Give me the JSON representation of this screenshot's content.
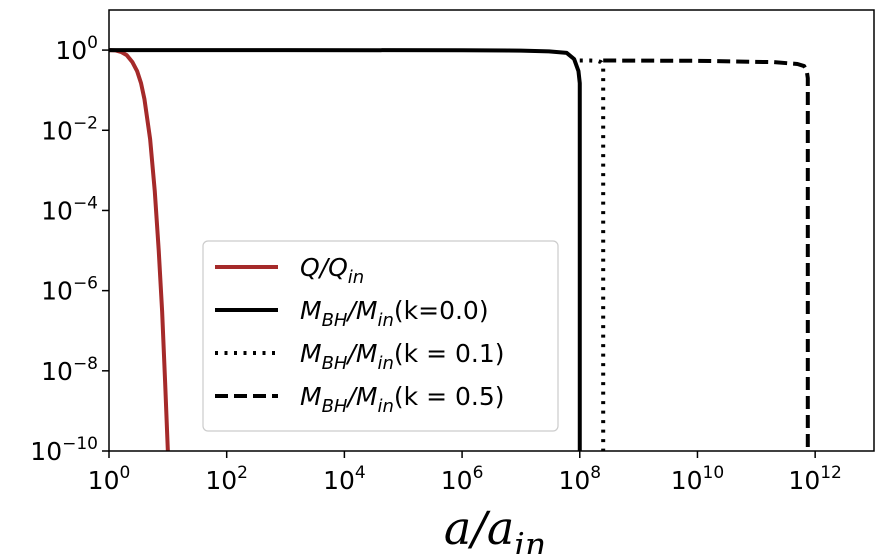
{
  "chart_data": {
    "type": "line",
    "xscale": "log",
    "yscale": "log",
    "xlim": [
      1,
      10000000000000.0
    ],
    "ylim": [
      1e-10,
      10
    ],
    "xlabel": "a/a_in",
    "ylabel": "",
    "grid": false,
    "legend_position": "lower-center",
    "xticks": [
      {
        "value": 1,
        "base": "10",
        "exp": "0"
      },
      {
        "value": 100,
        "base": "10",
        "exp": "2"
      },
      {
        "value": 10000,
        "base": "10",
        "exp": "4"
      },
      {
        "value": 1000000,
        "base": "10",
        "exp": "6"
      },
      {
        "value": 100000000,
        "base": "10",
        "exp": "8"
      },
      {
        "value": 10000000000,
        "base": "10",
        "exp": "10"
      },
      {
        "value": 1000000000000,
        "base": "10",
        "exp": "12"
      }
    ],
    "yticks": [
      {
        "value": 1,
        "base": "10",
        "exp": "0"
      },
      {
        "value": 0.01,
        "base": "10",
        "exp": "−2"
      },
      {
        "value": 0.0001,
        "base": "10",
        "exp": "−4"
      },
      {
        "value": 1e-06,
        "base": "10",
        "exp": "−6"
      },
      {
        "value": 1e-08,
        "base": "10",
        "exp": "−8"
      },
      {
        "value": 1e-10,
        "base": "10",
        "exp": "−10"
      }
    ],
    "series": [
      {
        "name": "Q/Q_in",
        "color": "#a52a2a",
        "style": "solid",
        "x": [
          1,
          1.3,
          1.6,
          2,
          2.5,
          3,
          3.5,
          4,
          5,
          6,
          7,
          8,
          9,
          10
        ],
        "y": [
          1,
          0.98,
          0.9,
          0.75,
          0.5,
          0.3,
          0.15,
          0.06,
          0.006,
          0.0003,
          1e-05,
          3e-07,
          5e-09,
          1e-10
        ]
      },
      {
        "name": "M_BH/M_in(k=0.0)",
        "color": "#000000",
        "style": "solid",
        "x": [
          1,
          1000,
          1000000,
          10000000,
          30000000,
          60000000,
          80000000,
          95000000,
          100000000,
          100000000
        ],
        "y": [
          1,
          1,
          0.99,
          0.97,
          0.93,
          0.85,
          0.6,
          0.3,
          0.15,
          1e-10
        ]
      },
      {
        "name": "M_BH/M_in(k = 0.1)",
        "color": "#000000",
        "style": "dotted",
        "x": [
          100000000,
          150000000,
          200000000,
          230000000,
          250000000,
          250000000
        ],
        "y": [
          0.55,
          0.55,
          0.54,
          0.5,
          0.4,
          1e-10
        ]
      },
      {
        "name": "M_BH/M_in(k = 0.5)",
        "color": "#000000",
        "style": "dashed",
        "x": [
          250000000,
          10000000000,
          200000000000,
          500000000000,
          650000000000,
          720000000000,
          750000000000,
          750000000000
        ],
        "y": [
          0.55,
          0.54,
          0.5,
          0.45,
          0.4,
          0.3,
          0.2,
          1e-10
        ]
      }
    ],
    "legend": [
      {
        "label": "Q/Q",
        "sub": "in",
        "suffix": ""
      },
      {
        "label": "M",
        "sub": "BH",
        "label2": "/M",
        "sub2": "in",
        "suffix": "(k=0.0)"
      },
      {
        "label": "M",
        "sub": "BH",
        "label2": "/M",
        "sub2": "in",
        "suffix": "(k = 0.1)"
      },
      {
        "label": "M",
        "sub": "BH",
        "label2": "/M",
        "sub2": "in",
        "suffix": "(k = 0.5)"
      }
    ]
  }
}
